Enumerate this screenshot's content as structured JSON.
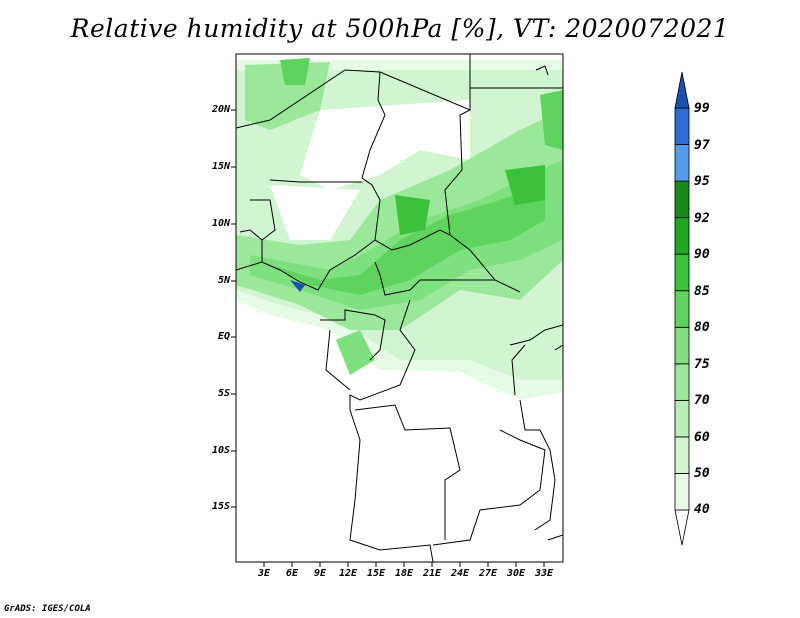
{
  "title": "Relative humidity at 500hPa [%], VT: 2020072021",
  "credit": "GrADS: IGES/COLA",
  "map": {
    "lat_labels": [
      "20N",
      "15N",
      "10N",
      "5N",
      "EQ",
      "5S",
      "10S",
      "15S"
    ],
    "lon_labels": [
      "3E",
      "6E",
      "9E",
      "12E",
      "15E",
      "18E",
      "21E",
      "24E",
      "27E",
      "30E",
      "33E"
    ]
  },
  "colorbar": {
    "levels": [
      "40",
      "50",
      "60",
      "70",
      "75",
      "80",
      "85",
      "90",
      "92",
      "95",
      "97",
      "99"
    ],
    "colors": [
      "#ffffff",
      "#e6fbe6",
      "#d0f5d0",
      "#b8efb8",
      "#9be89b",
      "#7ee07e",
      "#5ed35e",
      "#3cc13c",
      "#1fa81f",
      "#168c16",
      "#4f9de8",
      "#2a6fd6",
      "#1b4fb0"
    ]
  }
}
